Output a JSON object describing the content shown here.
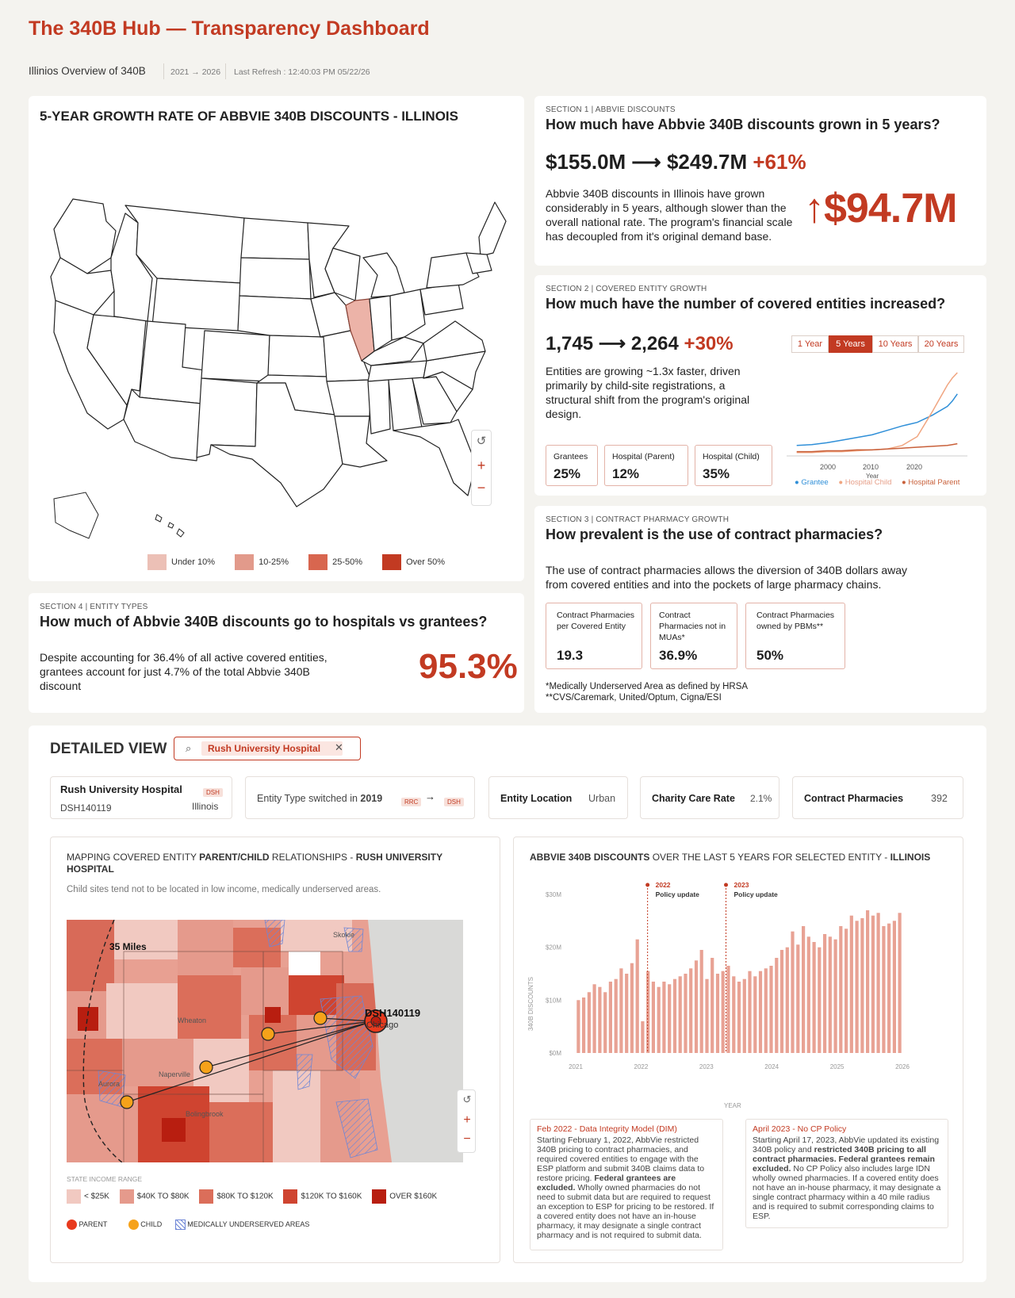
{
  "header": {
    "title": "The 340B Hub — Transparency Dashboard",
    "subtitle": "Illinios Overview of 340B",
    "range": "2021 → 2026",
    "refresh_label": "Last Refresh :",
    "refresh_value": "12:40:03 PM 05/22/26"
  },
  "map_card": {
    "title": "5-YEAR GROWTH RATE OF ABBVIE 340B DISCOUNTS - ILLINOIS",
    "legend": [
      "Under 10%",
      "10-25%",
      "25-50%",
      "Over 50%"
    ],
    "legend_colors": [
      "#ecc0b6",
      "#e29a8b",
      "#d8664f",
      "#c23a22"
    ]
  },
  "section1": {
    "label": "SECTION 1 | ABBVIE DISCOUNTS",
    "question": "How much have Abbvie 340B discounts grown in 5 years?",
    "from": "$155.0M",
    "arrow": "⟶",
    "to": "$249.7M",
    "pct": "+61%",
    "body": "Abbvie 340B discounts in Illinois have grown considerably in 5 years, although slower than the overall national rate. The program's financial scale has decoupled from it's original demand base.",
    "big": "↑$94.7M"
  },
  "section2": {
    "label": "SECTION 2 | COVERED ENTITY GROWTH",
    "question": "How much have the number of covered entities increased?",
    "from": "1,745",
    "arrow": "⟶",
    "to": "2,264",
    "pct": "+30%",
    "body": "Entities are growing ~1.3x faster, driven primarily by child-site registrations, a structural shift from the program's original design.",
    "buttons": [
      "1 Year",
      "5 Years",
      "10 Years",
      "20 Years"
    ],
    "active": "5 Years",
    "stats": [
      {
        "label": "Grantees",
        "value": "25%"
      },
      {
        "label": "Hospital (Parent)",
        "value": "12%"
      },
      {
        "label": "Hospital (Child)",
        "value": "35%"
      }
    ],
    "legend": [
      "Grantee",
      "Hospital Child",
      "Hospital Parent"
    ],
    "xticks": [
      "2000",
      "2010",
      "2020"
    ],
    "xlabel": "Year"
  },
  "section3": {
    "label": "SECTION 3 | CONTRACT PHARMACY GROWTH",
    "question": "How prevalent is the use of contract pharmacies?",
    "body": "The use of contract pharmacies allows the diversion of 340B dollars away from covered entities and into the pockets of large pharmacy chains.",
    "stats": [
      {
        "label": "Contract Pharmacies per Covered Entity",
        "value": "19.3"
      },
      {
        "label": "Contract Pharmacies not in MUAs*",
        "value": "36.9%"
      },
      {
        "label": "Contract Pharmacies owned by PBMs**",
        "value": "50%"
      }
    ],
    "foot1": "*Medically Underserved Area as defined by HRSA",
    "foot2": "**CVS/Caremark, United/Optum, Cigna/ESI"
  },
  "section4": {
    "label": "SECTION 4 | ENTITY TYPES",
    "question": "How much of Abbvie 340B discounts go to hospitals vs grantees?",
    "body": "Despite accounting for 36.4% of all active covered entities, grantees account for just 4.7% of the total Abbvie 340B discount",
    "big": "95.3%"
  },
  "detail": {
    "title": "DETAILED VIEW",
    "search_value": "Rush University Hospital",
    "entity_name": "Rush University Hospital",
    "entity_badge": "DSH",
    "entity_id": "DSH140119",
    "entity_state": "Illinois",
    "switch_text": "Entity Type switched in",
    "switch_year": "2019",
    "switch_from": "RRC",
    "switch_to": "DSH",
    "location_label": "Entity Location",
    "location_value": "Urban",
    "charity_label": "Charity Care Rate",
    "charity_value": "2.1%",
    "cp_label": "Contract Pharmacies",
    "cp_value": "392"
  },
  "relmap": {
    "title_a": "MAPPING COVERED ENTITY ",
    "title_b": "PARENT/CHILD",
    "title_c": " RELATIONSHIPS - ",
    "title_d": "RUSH UNIVERSITY HOSPITAL",
    "subtitle": "Child sites tend not to be located in low income, medically underserved areas.",
    "radius": "35 Miles",
    "entity_tag": "DSH140119",
    "places": [
      "Skokie",
      "Wheaton",
      "Naperville",
      "Aurora",
      "Bolingbrook",
      "Chicago"
    ],
    "legend_title": "STATE INCOME RANGE",
    "income": [
      "< $25K",
      "$40K TO $80K",
      "$80K TO $120K",
      "$120K TO $160K",
      "OVER $160K"
    ],
    "income_colors": [
      "#f1c9c1",
      "#e59a8c",
      "#db6e5a",
      "#cf4430",
      "#b81e10"
    ],
    "parent": "PARENT",
    "child": "CHILD",
    "mua": "MEDICALLY UNDERSERVED AREAS"
  },
  "bars": {
    "title_a": "ABBVIE 340B DISCOUNTS",
    "title_b": " OVER THE LAST 5 YEARS FOR SELECTED ENTITY - ",
    "title_c": "ILLINOIS",
    "ylabel": "340B DISCOUNTS",
    "xlabel": "YEAR",
    "ann1_year": "2022",
    "ann1_text": "Policy update",
    "ann2_year": "2023",
    "ann2_text": "Policy update",
    "ev1_title": "Feb 2022 - Data Integrity Model (DIM)",
    "ev1_body": "Starting February 1, 2022, AbbVie restricted 340B pricing to contract pharmacies, and required covered entities to engage with the ESP platform and submit 340B claims data to restore pricing.",
    "ev1_bold": "Federal grantees are excluded.",
    "ev1_body2": "Wholly owned pharmacies do not need to submit data but are required to request an exception to ESP for pricing to be restored. If a covered entity does not have an in-house pharmacy, it may designate a single contract pharmacy and is not required to submit data.",
    "ev2_title": "April 2023 - No CP Policy",
    "ev2_body": "Starting April 17, 2023, AbbVie updated its existing 340B policy and",
    "ev2_bold": "restricted 340B pricing to all contract pharmacies. Federal grantees remain excluded.",
    "ev2_body2": "No CP Policy also includes large IDN wholly owned pharmacies. If a covered entity does not have an in-house pharmacy, it may designate a single contract pharmacy within a 40 mile radius and is required to submit corresponding claims to ESP."
  },
  "chart_data": [
    {
      "type": "line",
      "x": [
        1992,
        1995,
        1998,
        2001,
        2004,
        2007,
        2010,
        2013,
        2016,
        2019,
        2022,
        2023,
        2024
      ],
      "xlabel": "Year",
      "xticks": [
        2000,
        2010,
        2020
      ],
      "series": [
        {
          "name": "Grantee",
          "color": "#2f8fd8",
          "values": [
            1.0,
            1.1,
            1.3,
            1.6,
            1.9,
            2.2,
            2.7,
            3.2,
            3.6,
            4.4,
            5.4,
            6.0,
            6.8
          ]
        },
        {
          "name": "Hospital Child",
          "color": "#f0a580",
          "values": [
            0.2,
            0.2,
            0.3,
            0.3,
            0.4,
            0.5,
            0.6,
            1.0,
            2.0,
            4.8,
            7.8,
            8.6,
            9.2
          ]
        },
        {
          "name": "Hospital Parent",
          "color": "#c8603a",
          "values": [
            0.3,
            0.3,
            0.4,
            0.4,
            0.5,
            0.5,
            0.6,
            0.7,
            0.8,
            0.9,
            1.0,
            1.1,
            1.2
          ]
        }
      ]
    },
    {
      "type": "bar",
      "title": "ABBVIE 340B DISCOUNTS OVER THE LAST 5 YEARS FOR SELECTED ENTITY - ILLINOIS",
      "ylabel": "340B DISCOUNTS",
      "xlabel": "YEAR",
      "ylim": [
        0,
        30
      ],
      "yticks": [
        "$0M",
        "$10M",
        "$20M",
        "$30M"
      ],
      "xticks": [
        "2021",
        "2022",
        "2023",
        "2024",
        "2025",
        "2026"
      ],
      "x_start": 2021,
      "x_end": 2026,
      "color": "#e8a294",
      "values": [
        10,
        10.5,
        11.5,
        13,
        12.5,
        11.5,
        13.5,
        14,
        16,
        15,
        17,
        21.5,
        6,
        15.5,
        13.5,
        12.5,
        13.5,
        13,
        14,
        14.5,
        15,
        16,
        17.5,
        19.5,
        14,
        18,
        15,
        15.5,
        16.5,
        14.5,
        13.5,
        14,
        15.5,
        14.5,
        15.5,
        16,
        16.5,
        18,
        19.5,
        20,
        23,
        20.5,
        24,
        22,
        21,
        20,
        22.5,
        22,
        21.5,
        24,
        23.5,
        26,
        25,
        25.5,
        27,
        26,
        26.5,
        24,
        24.5,
        25,
        26.5
      ]
    }
  ]
}
